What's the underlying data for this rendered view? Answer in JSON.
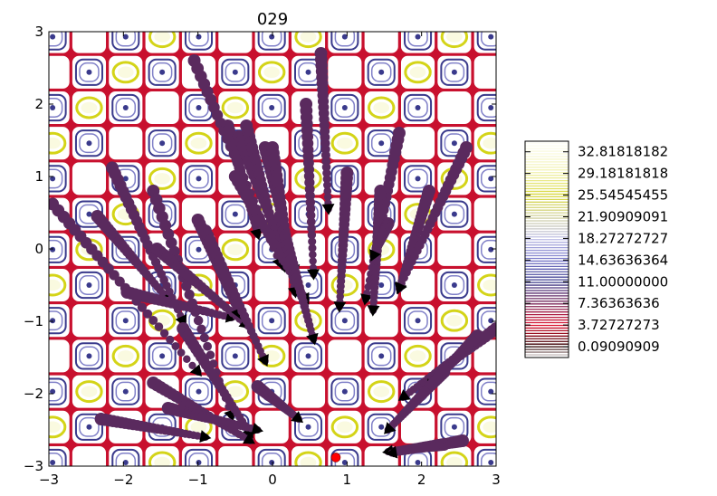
{
  "chart_data": {
    "type": "contour",
    "title": "029",
    "xlim": [
      -3,
      3
    ],
    "ylim": [
      -3,
      3
    ],
    "x_ticks": [
      "−3",
      "−2",
      "−1",
      "0",
      "1",
      "2",
      "3"
    ],
    "y_ticks": [
      "−3",
      "−2",
      "−1",
      "0",
      "1",
      "2",
      "3"
    ],
    "x_tick_values": [
      -3,
      -2,
      -1,
      0,
      1,
      2,
      3
    ],
    "y_tick_values": [
      -3,
      -2,
      -1,
      0,
      1,
      2,
      3
    ],
    "colorbar_labels": [
      "32.81818182",
      "29.18181818",
      "25.54545455",
      "21.90909091",
      "18.27272727",
      "14.63636364",
      "11.00000000",
      "7.36363636",
      "3.72727273",
      "0.09090909"
    ],
    "colorbar_values": [
      32.81818182,
      29.18181818,
      25.54545455,
      21.90909091,
      18.27272727,
      14.63636364,
      11.0,
      7.36363636,
      3.72727273,
      0.09090909
    ],
    "colors": {
      "trajectory": "#5a2a5e",
      "endpoint_marker": "#000000",
      "target_point": "#ff0000",
      "contour_low": "#c8102e",
      "contour_mid": "#3a3a8c",
      "contour_high": "#d4d418"
    },
    "target_point": {
      "x": 0.85,
      "y": -2.88
    },
    "trajectories": [
      {
        "start": [
          -2.95,
          0.62
        ],
        "end": [
          -1.0,
          -1.7
        ]
      },
      {
        "start": [
          -2.35,
          0.45
        ],
        "end": [
          -1.4,
          -0.7
        ]
      },
      {
        "start": [
          -2.15,
          1.12
        ],
        "end": [
          -1.2,
          -1.0
        ]
      },
      {
        "start": [
          -1.95,
          -0.6
        ],
        "end": [
          -0.55,
          -0.95
        ]
      },
      {
        "start": [
          -1.6,
          0.8
        ],
        "end": [
          -0.55,
          -2.3
        ]
      },
      {
        "start": [
          -1.55,
          0.0
        ],
        "end": [
          -0.35,
          -1.05
        ]
      },
      {
        "start": [
          -1.2,
          -1.1
        ],
        "end": [
          -0.3,
          -2.55
        ]
      },
      {
        "start": [
          -1.0,
          0.4
        ],
        "end": [
          -0.45,
          -0.9
        ]
      },
      {
        "start": [
          -0.9,
          0.25
        ],
        "end": [
          -0.1,
          -1.55
        ]
      },
      {
        "start": [
          -1.6,
          -1.85
        ],
        "end": [
          -0.3,
          -2.65
        ]
      },
      {
        "start": [
          -2.3,
          -2.35
        ],
        "end": [
          -0.9,
          -2.6
        ]
      },
      {
        "start": [
          -1.4,
          -2.2
        ],
        "end": [
          -0.2,
          -2.5
        ]
      },
      {
        "start": [
          -0.2,
          -1.9
        ],
        "end": [
          0.35,
          -2.35
        ]
      },
      {
        "start": [
          -1.05,
          2.6
        ],
        "end": [
          0.1,
          -0.2
        ]
      },
      {
        "start": [
          -0.6,
          1.7
        ],
        "end": [
          -0.2,
          0.2
        ]
      },
      {
        "start": [
          -0.45,
          1.55
        ],
        "end": [
          0.2,
          -0.2
        ]
      },
      {
        "start": [
          -0.35,
          1.7
        ],
        "end": [
          0.15,
          -0.25
        ]
      },
      {
        "start": [
          -0.1,
          1.4
        ],
        "end": [
          0.3,
          -0.3
        ]
      },
      {
        "start": [
          0.0,
          1.4
        ],
        "end": [
          0.3,
          -0.6
        ]
      },
      {
        "start": [
          -0.5,
          1.0
        ],
        "end": [
          0.45,
          -0.7
        ]
      },
      {
        "start": [
          0.1,
          0.45
        ],
        "end": [
          0.55,
          -1.25
        ]
      },
      {
        "start": [
          0.45,
          2.0
        ],
        "end": [
          0.55,
          -0.35
        ]
      },
      {
        "start": [
          0.65,
          2.7
        ],
        "end": [
          0.75,
          0.55
        ]
      },
      {
        "start": [
          1.0,
          1.05
        ],
        "end": [
          0.9,
          -0.8
        ]
      },
      {
        "start": [
          1.7,
          1.6
        ],
        "end": [
          1.25,
          -0.7
        ]
      },
      {
        "start": [
          1.45,
          0.8
        ],
        "end": [
          1.35,
          -0.85
        ]
      },
      {
        "start": [
          1.55,
          0.35
        ],
        "end": [
          1.35,
          -0.1
        ]
      },
      {
        "start": [
          2.1,
          0.8
        ],
        "end": [
          1.7,
          -0.55
        ]
      },
      {
        "start": [
          2.6,
          1.4
        ],
        "end": [
          1.7,
          -0.55
        ]
      },
      {
        "start": [
          3.0,
          -1.1
        ],
        "end": [
          1.75,
          -2.05
        ]
      },
      {
        "start": [
          2.75,
          -1.2
        ],
        "end": [
          2.1,
          -1.9
        ]
      },
      {
        "start": [
          2.3,
          -1.7
        ],
        "end": [
          1.55,
          -2.5
        ]
      },
      {
        "start": [
          2.3,
          -2.7
        ],
        "end": [
          1.55,
          -2.8
        ]
      },
      {
        "start": [
          2.55,
          -2.65
        ],
        "end": [
          1.6,
          -2.82
        ]
      }
    ]
  }
}
